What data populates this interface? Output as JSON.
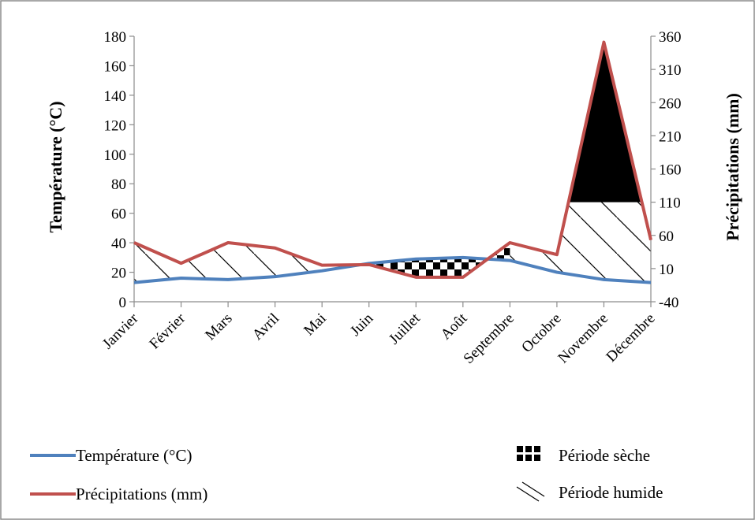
{
  "chart_data": {
    "type": "line",
    "categories": [
      "Janvier",
      "Février",
      "Mars",
      "Avril",
      "Mai",
      "Juin",
      "Juillet",
      "Août",
      "Septembre",
      "Octobre",
      "Novembre",
      "Décembre"
    ],
    "series": [
      {
        "name": "Température (°C)",
        "axis": "left",
        "color": "#4f81bd",
        "values": [
          13,
          16,
          15,
          17,
          21,
          26,
          29,
          30,
          28,
          20,
          15,
          13
        ]
      },
      {
        "name": "Précipitations (mm)",
        "axis": "right",
        "color": "#c0504d",
        "values": [
          49,
          18,
          49,
          41,
          15,
          16,
          -3,
          -3,
          49,
          31,
          351,
          53
        ]
      }
    ],
    "ylabel_left": "Température (°C)",
    "ylabel_right": "Précipitations (mm)",
    "ylim_left": [
      0,
      180
    ],
    "ylim_right": [
      -40,
      360
    ],
    "yticks_left": [
      "0",
      "20",
      "40",
      "60",
      "80",
      "100",
      "120",
      "140",
      "160",
      "180"
    ],
    "yticks_right": [
      "-40",
      "10",
      "60",
      "110",
      "160",
      "210",
      "260",
      "310",
      "360"
    ],
    "grid": false,
    "legend_position": "bottom",
    "legend": {
      "temperature": "Température (°C)",
      "precipitation": "Précipitations (mm)",
      "dry_period": "Période sèche",
      "wet_period": "Période humide"
    },
    "colors": {
      "temperature": "#4f81bd",
      "precipitation": "#c0504d",
      "frame": "#8c8c8c"
    }
  }
}
